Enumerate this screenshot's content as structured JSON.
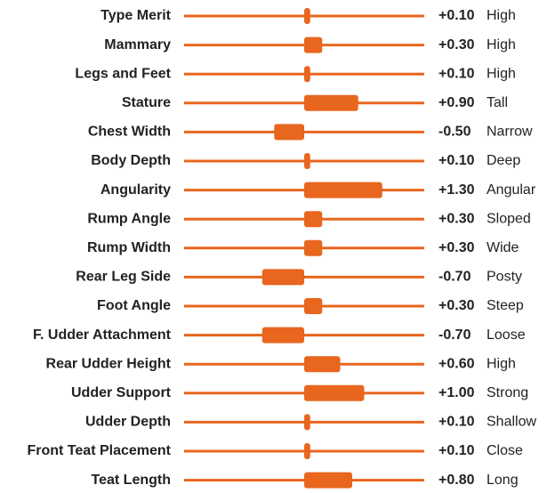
{
  "chart_data": {
    "type": "bar",
    "orientation": "horizontal",
    "categories": [
      "Type Merit",
      "Mammary",
      "Legs and Feet",
      "Stature",
      "Chest Width",
      "Body Depth",
      "Angularity",
      "Rump Angle",
      "Rump Width",
      "Rear Leg Side",
      "Foot Angle",
      "F. Udder Attachment",
      "Rear Udder Height",
      "Udder Support",
      "Udder Depth",
      "Front Teat Placement",
      "Teat Length"
    ],
    "values": [
      0.1,
      0.3,
      0.1,
      0.9,
      -0.5,
      0.1,
      1.3,
      0.3,
      0.3,
      -0.7,
      0.3,
      -0.7,
      0.6,
      1.0,
      0.1,
      0.1,
      0.8
    ],
    "value_labels": [
      "+0.10",
      "+0.30",
      "+0.10",
      "+0.90",
      "-0.50",
      "+0.10",
      "+1.30",
      "+0.30",
      "+0.30",
      "-0.70",
      "+0.30",
      "-0.70",
      "+0.60",
      "+1.00",
      "+0.10",
      "+0.10",
      "+0.80"
    ],
    "descriptors": [
      "High",
      "High",
      "High",
      "Tall",
      "Narrow",
      "Deep",
      "Angular",
      "Sloped",
      "Wide",
      "Posty",
      "Steep",
      "Loose",
      "High",
      "Strong",
      "Shallow",
      "Close",
      "Long"
    ],
    "color": "#e8661e",
    "xlim": [
      -2,
      2
    ]
  }
}
